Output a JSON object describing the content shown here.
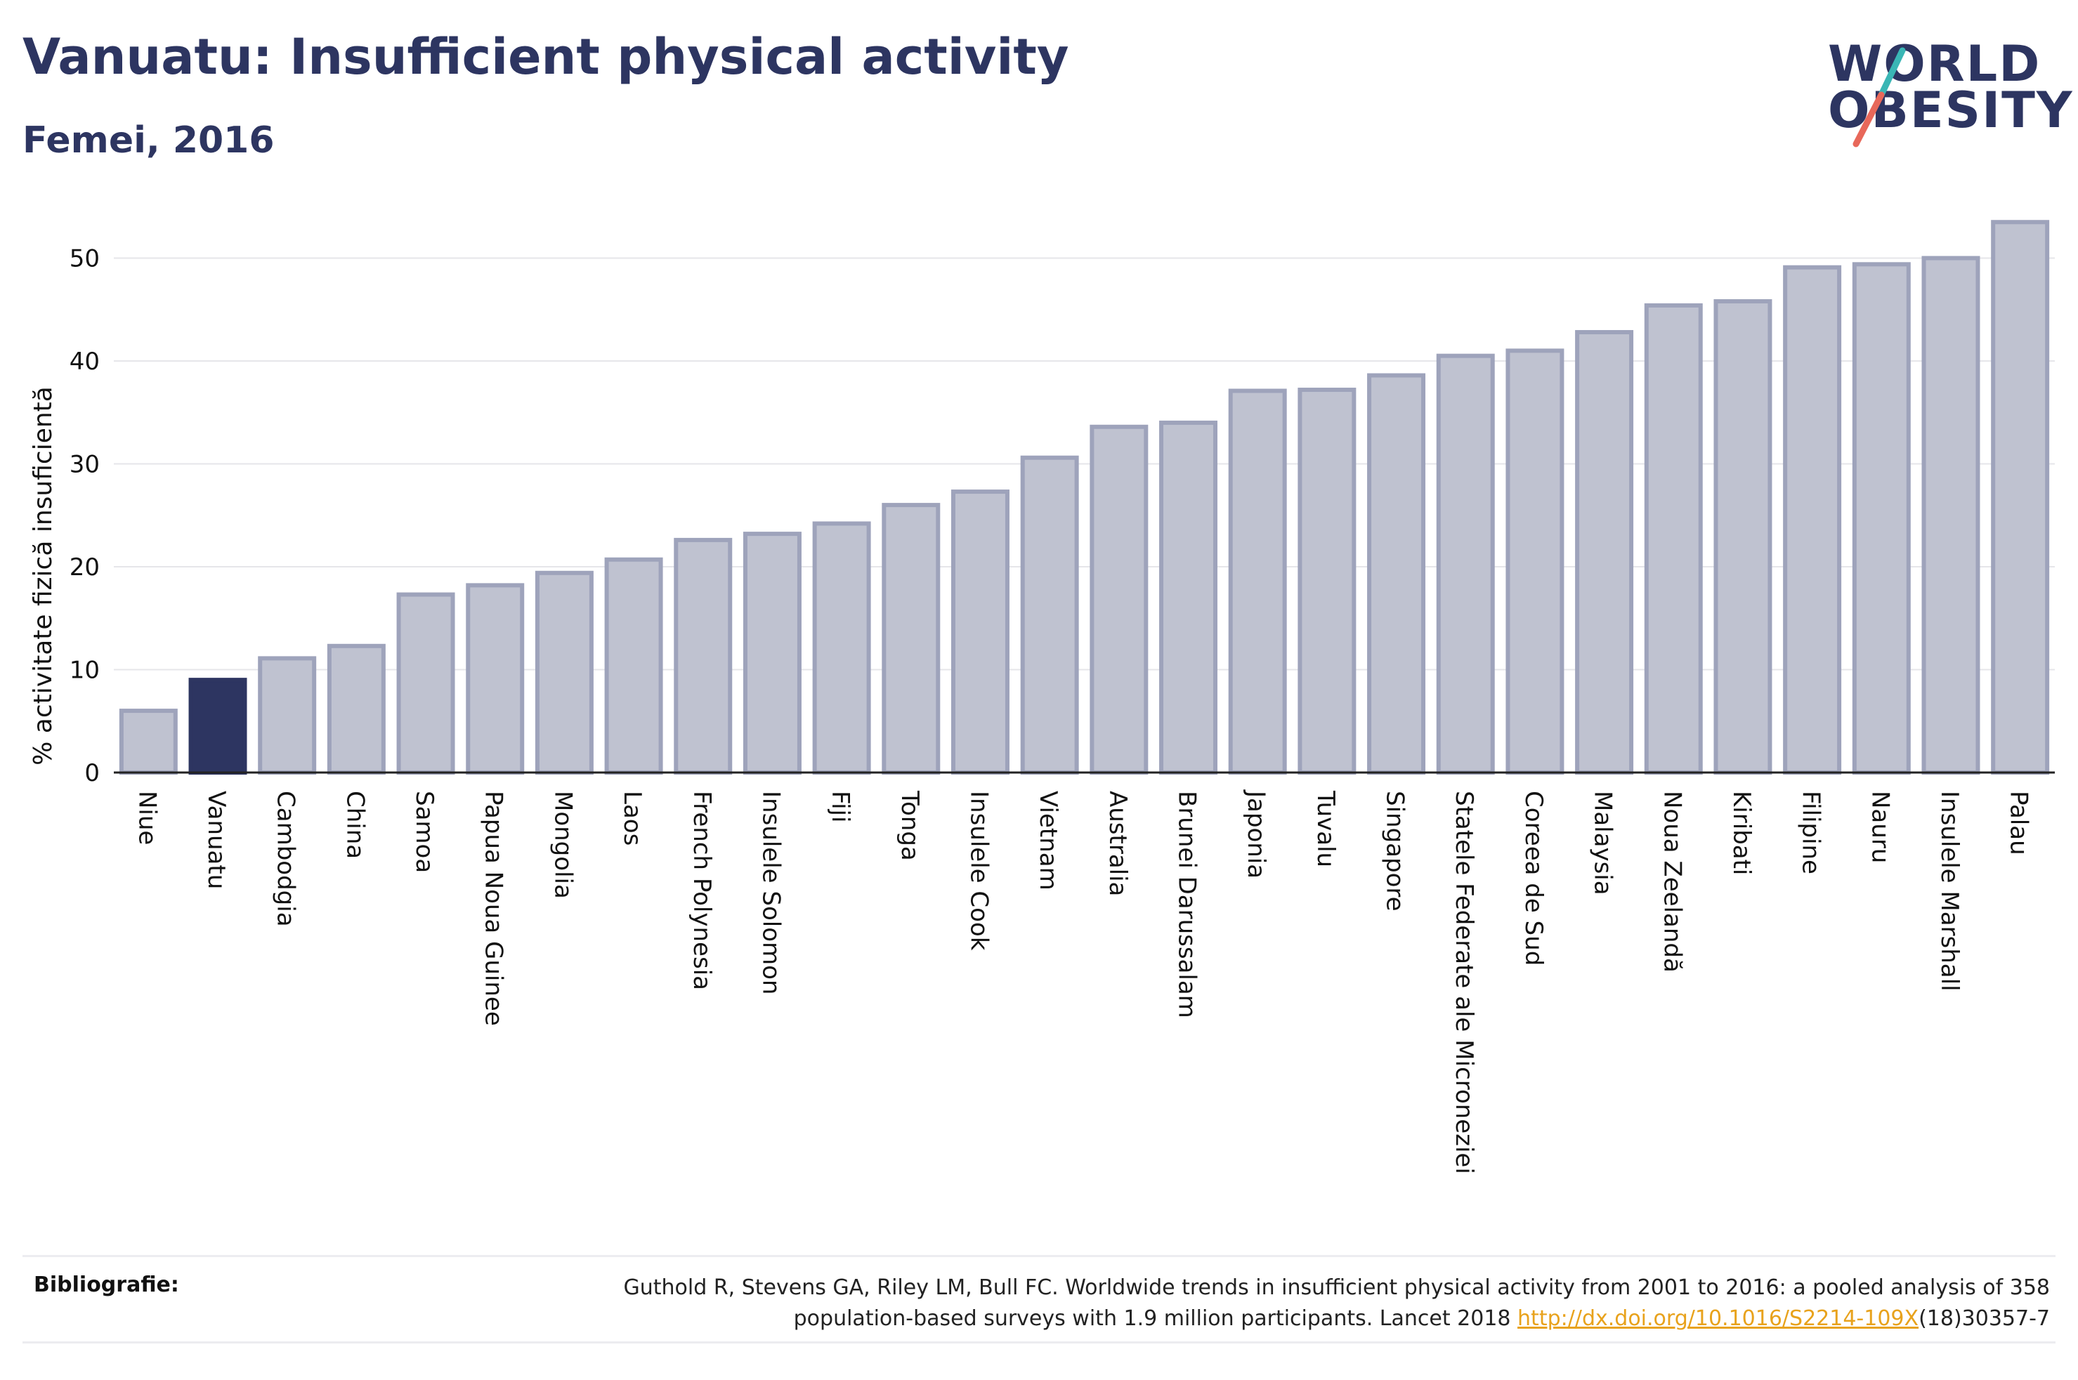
{
  "header": {
    "title": "Vanuatu: Insufficient physical activity",
    "subtitle": "Femei, 2016"
  },
  "logo": {
    "line1": "WORLD",
    "line2": "OBESITY",
    "colors": {
      "text": "#2d3561",
      "slash_top": "#3ab6b5",
      "slash_bottom": "#e8685a"
    }
  },
  "chart_data": {
    "type": "bar",
    "ylabel": "% activitate fizică insuficientă",
    "xlabel": "",
    "ylim": [
      0,
      55
    ],
    "yticks": [
      0,
      10,
      20,
      30,
      40,
      50
    ],
    "grid": true,
    "highlight": "Vanuatu",
    "colors": {
      "bar": "#bfc2d0",
      "bar_border": "#9ea3bb",
      "highlight": "#2d3561"
    },
    "categories": [
      "Niue",
      "Vanuatu",
      "Cambodgia",
      "China",
      "Samoa",
      "Papua Noua Guinee",
      "Mongolia",
      "Laos",
      "French Polynesia",
      "Insulele Solomon",
      "Fiji",
      "Tonga",
      "Insulele Cook",
      "Vietnam",
      "Australia",
      "Brunei Darussalam",
      "Japonia",
      "Tuvalu",
      "Singapore",
      "Statele Federate ale Microneziei",
      "Coreea de Sud",
      "Malaysia",
      "Noua Zeelandă",
      "Kiribati",
      "Filipine",
      "Nauru",
      "Insulele Marshall",
      "Palau"
    ],
    "values": [
      6.0,
      9.0,
      11.1,
      12.3,
      17.3,
      18.2,
      19.4,
      20.7,
      22.6,
      23.2,
      24.2,
      26.0,
      27.3,
      30.6,
      33.6,
      34.0,
      37.1,
      37.2,
      38.6,
      40.5,
      41.0,
      42.8,
      45.4,
      45.8,
      49.1,
      49.4,
      50.0,
      53.5
    ]
  },
  "footer": {
    "label": "Bibliografie:",
    "line1": "Guthold R, Stevens GA, Riley LM, Bull FC. Worldwide trends in insufficient physical activity from 2001 to 2016: a pooled analysis of 358",
    "line2_before": "population-based surveys with 1.9 million participants. Lancet 2018 ",
    "link": "http://dx.doi.org/10.1016/S2214-109X",
    "line2_after": "(18)30357-7"
  }
}
